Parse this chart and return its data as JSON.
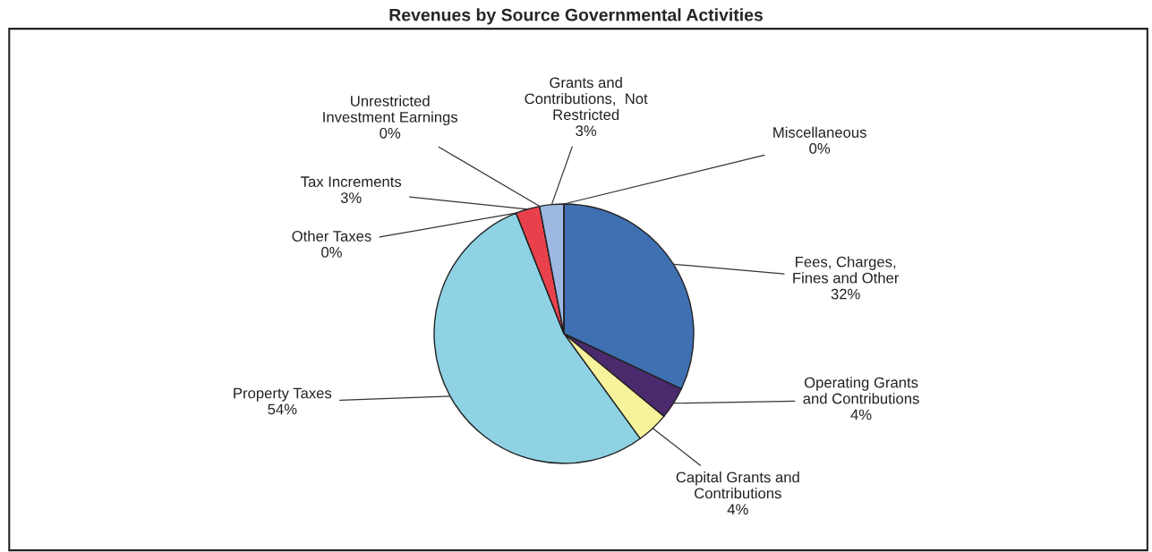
{
  "chart_data": {
    "type": "pie",
    "title": "Revenues by Source Governmental Activities",
    "categories": [
      "Fees, Charges,\nFines and Other",
      "Operating Grants\nand Contributions",
      "Capital Grants and\nContributions",
      "Property Taxes",
      "Other Taxes",
      "Tax Increments",
      "Unrestricted\nInvestment Earnings",
      "Grants and\nContributions,  Not\nRestricted",
      "Miscellaneous"
    ],
    "values": [
      32,
      4,
      4,
      54,
      0,
      3,
      0,
      3,
      0
    ],
    "value_labels": [
      "32%",
      "4%",
      "4%",
      "54%",
      "0%",
      "3%",
      "0%",
      "3%",
      "0%"
    ],
    "colors": [
      "#3f70b2",
      "#4a2a6c",
      "#f7f29c",
      "#8ed2e4",
      "#c0504d",
      "#e9414b",
      "#f2f2f2",
      "#9db9e2",
      "#3b1f5c"
    ],
    "legend": false
  }
}
